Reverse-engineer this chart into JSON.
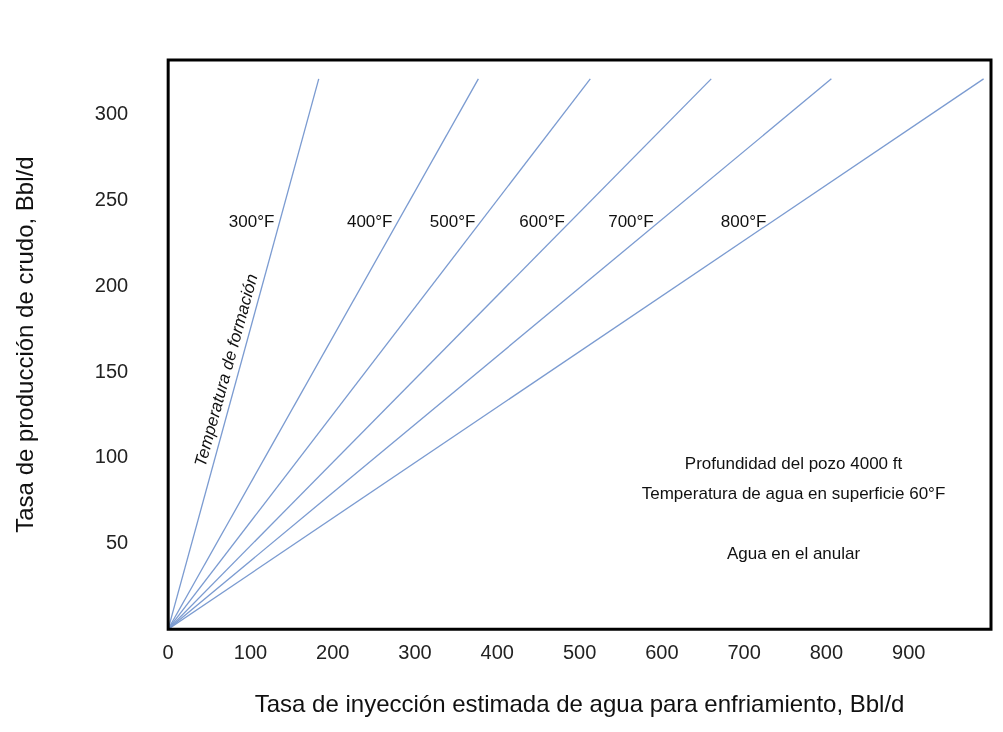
{
  "chart_data": {
    "type": "line",
    "xlabel": "Tasa de inyección estimada de agua para enfriamiento, Bbl/d",
    "ylabel": "Tasa de producción de crudo, Bbl/d",
    "xlim": [
      0,
      1000
    ],
    "ylim": [
      0,
      332
    ],
    "xticks": [
      0,
      100,
      200,
      300,
      400,
      500,
      600,
      700,
      800,
      900
    ],
    "yticks": [
      50,
      100,
      150,
      200,
      250,
      300
    ],
    "grid": false,
    "legend": false,
    "marker": "none",
    "line_style": "solid",
    "series": [
      {
        "name": "300°F",
        "color": "#7b9bd1",
        "x": [
          0,
          183
        ],
        "values": [
          0,
          321
        ]
      },
      {
        "name": "400°F",
        "color": "#7b9bd1",
        "x": [
          0,
          377
        ],
        "values": [
          0,
          321
        ]
      },
      {
        "name": "500°F",
        "color": "#7b9bd1",
        "x": [
          0,
          513
        ],
        "values": [
          0,
          321
        ]
      },
      {
        "name": "600°F",
        "color": "#7b9bd1",
        "x": [
          0,
          660
        ],
        "values": [
          0,
          321
        ]
      },
      {
        "name": "700°F",
        "color": "#7b9bd1",
        "x": [
          0,
          806
        ],
        "values": [
          0,
          321
        ]
      },
      {
        "name": "800°F",
        "color": "#7b9bd1",
        "x": [
          0,
          991
        ],
        "values": [
          0,
          321
        ]
      }
    ],
    "annotations": [
      "Temperatura de formación",
      "Profundidad del pozo 4000 ft",
      "Temperatura de agua en superficie 60°F",
      "Agua en el anular"
    ]
  }
}
